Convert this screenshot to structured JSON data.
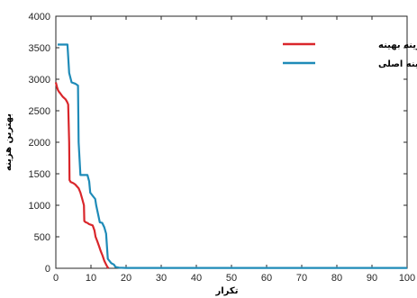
{
  "chart_data": {
    "type": "line",
    "title": "",
    "xlabel": "تکرار",
    "ylabel": "بهترین هزینه",
    "xlim": [
      0,
      100
    ],
    "ylim": [
      0,
      4000
    ],
    "xticks": [
      0,
      10,
      20,
      30,
      40,
      50,
      60,
      70,
      80,
      90,
      100
    ],
    "yticks": [
      0,
      500,
      1000,
      1500,
      2000,
      2500,
      3000,
      3500,
      4000
    ],
    "grid": false,
    "legend_position": "top-right",
    "series": [
      {
        "name": "هزینه بهینه",
        "color": "#d9262b",
        "x": [
          0,
          0.3,
          0.6,
          0.9,
          1.2,
          1.6,
          2,
          2.4,
          2.8,
          3.2,
          3.5,
          3.8,
          3.9,
          4.2,
          4.6,
          5,
          5.5,
          6,
          6.5,
          7,
          7.5,
          8,
          8.1,
          8.5,
          9,
          9.5,
          10,
          10.5,
          11,
          11.3,
          11.8,
          12.3,
          12.8,
          13.3,
          13.8,
          14.3,
          14.7,
          15
        ],
        "y": [
          2950,
          2880,
          2830,
          2800,
          2780,
          2750,
          2720,
          2700,
          2680,
          2640,
          2600,
          2000,
          1400,
          1370,
          1360,
          1350,
          1330,
          1300,
          1270,
          1200,
          1100,
          1000,
          750,
          730,
          720,
          700,
          690,
          680,
          600,
          500,
          430,
          350,
          270,
          200,
          120,
          60,
          20,
          0
        ]
      },
      {
        "name": "هزینه اصلی",
        "color": "#1f8bb8",
        "x": [
          0.5,
          1,
          2,
          3,
          3.3,
          3.8,
          4.5,
          5.5,
          6.3,
          6.5,
          7,
          8,
          9,
          9.5,
          9.8,
          10.5,
          11.2,
          11.5,
          12.5,
          13.2,
          13.8,
          14.3,
          14.8,
          15.8,
          16.5,
          17,
          18,
          20,
          30,
          40,
          50,
          60,
          70,
          80,
          90,
          100
        ],
        "y": [
          3550,
          3550,
          3550,
          3550,
          3550,
          3100,
          2950,
          2930,
          2900,
          2000,
          1480,
          1480,
          1480,
          1380,
          1200,
          1150,
          1100,
          1000,
          730,
          720,
          650,
          550,
          150,
          80,
          60,
          20,
          10,
          5,
          5,
          5,
          5,
          5,
          5,
          5,
          5,
          5
        ]
      }
    ]
  }
}
